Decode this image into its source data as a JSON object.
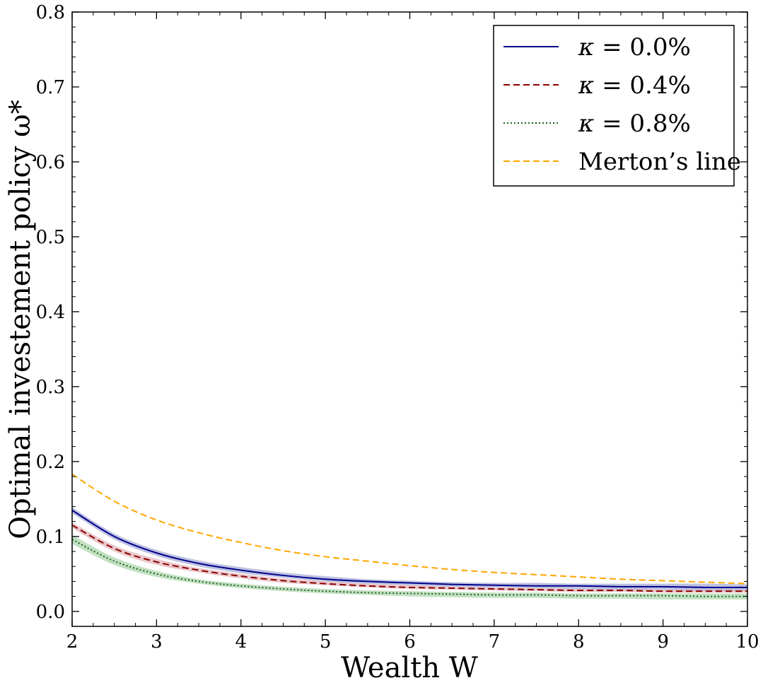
{
  "chart_data": {
    "type": "line",
    "xlabel": "Wealth W",
    "ylabel": "Optimal investement policy ω*",
    "xlim": [
      2,
      10
    ],
    "ylim": [
      -0.02,
      0.8
    ],
    "xticks": [
      2,
      3,
      4,
      5,
      6,
      7,
      8,
      9,
      10
    ],
    "xtick_labels": [
      "2",
      "3",
      "4",
      "5",
      "6",
      "7",
      "8",
      "9",
      "10"
    ],
    "yticks": [
      0.0,
      0.1,
      0.2,
      0.3,
      0.4,
      0.5,
      0.6,
      0.7,
      0.8
    ],
    "ytick_labels": [
      "0.0",
      "0.1",
      "0.2",
      "0.3",
      "0.4",
      "0.5",
      "0.6",
      "0.7",
      "0.8"
    ],
    "legend_position": "top-right",
    "x": [
      2,
      2.5,
      3,
      3.5,
      4,
      4.5,
      5,
      5.5,
      6,
      6.5,
      7,
      7.5,
      8,
      8.5,
      9,
      9.5,
      10
    ],
    "series": [
      {
        "name": "κ = 0.0%",
        "label_symbol": "κ",
        "label_rest": " = 0.0%",
        "color": "#00008b",
        "style": "solid",
        "values": [
          0.135,
          0.1,
          0.078,
          0.064,
          0.055,
          0.048,
          0.043,
          0.04,
          0.038,
          0.036,
          0.035,
          0.034,
          0.034,
          0.033,
          0.033,
          0.032,
          0.032
        ],
        "band_lower": [
          0.131,
          0.096,
          0.074,
          0.06,
          0.051,
          0.045,
          0.04,
          0.037,
          0.035,
          0.033,
          0.032,
          0.031,
          0.03,
          0.029,
          0.029,
          0.028,
          0.028
        ],
        "band_upper": [
          0.139,
          0.104,
          0.082,
          0.068,
          0.059,
          0.052,
          0.047,
          0.043,
          0.041,
          0.039,
          0.038,
          0.038,
          0.037,
          0.037,
          0.037,
          0.037,
          0.036
        ],
        "band_color": "#8890c8"
      },
      {
        "name": "κ = 0.4%",
        "label_symbol": "κ",
        "label_rest": " = 0.4%",
        "color": "#8b0000",
        "style": "dashed",
        "values": [
          0.115,
          0.084,
          0.066,
          0.055,
          0.047,
          0.041,
          0.037,
          0.034,
          0.032,
          0.031,
          0.03,
          0.029,
          0.028,
          0.028,
          0.027,
          0.027,
          0.027
        ],
        "band_lower": [
          0.111,
          0.08,
          0.062,
          0.052,
          0.044,
          0.038,
          0.035,
          0.032,
          0.03,
          0.029,
          0.028,
          0.027,
          0.026,
          0.026,
          0.025,
          0.025,
          0.025
        ],
        "band_upper": [
          0.119,
          0.088,
          0.07,
          0.058,
          0.05,
          0.044,
          0.04,
          0.037,
          0.035,
          0.033,
          0.032,
          0.031,
          0.03,
          0.03,
          0.029,
          0.029,
          0.029
        ],
        "band_color": "#d89aa2"
      },
      {
        "name": "κ = 0.8%",
        "label_symbol": "κ",
        "label_rest": " = 0.8%",
        "color": "#1e5e1e",
        "style": "dotted",
        "values": [
          0.096,
          0.067,
          0.05,
          0.04,
          0.034,
          0.03,
          0.027,
          0.025,
          0.024,
          0.023,
          0.022,
          0.022,
          0.021,
          0.021,
          0.021,
          0.02,
          0.02
        ],
        "band_lower": [
          0.09,
          0.062,
          0.046,
          0.037,
          0.031,
          0.027,
          0.024,
          0.022,
          0.02,
          0.019,
          0.018,
          0.018,
          0.017,
          0.017,
          0.016,
          0.016,
          0.016
        ],
        "band_upper": [
          0.102,
          0.072,
          0.054,
          0.043,
          0.037,
          0.033,
          0.03,
          0.028,
          0.027,
          0.026,
          0.025,
          0.025,
          0.024,
          0.024,
          0.024,
          0.024,
          0.024
        ],
        "band_color": "#8fc68f"
      },
      {
        "name": "Merton’s line",
        "label_symbol": "",
        "label_rest": "Merton’s line",
        "color": "#ffa500",
        "style": "dashed",
        "values": [
          0.183,
          0.147,
          0.122,
          0.105,
          0.092,
          0.081,
          0.073,
          0.067,
          0.061,
          0.056,
          0.052,
          0.049,
          0.046,
          0.043,
          0.041,
          0.039,
          0.037
        ]
      }
    ]
  }
}
